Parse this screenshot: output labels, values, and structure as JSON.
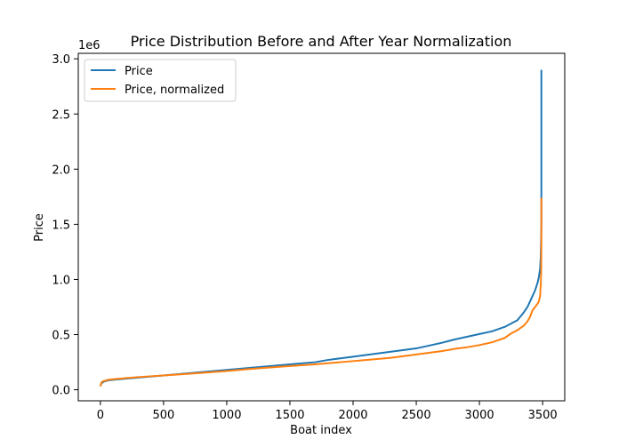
{
  "chart_data": {
    "type": "line",
    "title": "Price Distribution Before and After Year Normalization",
    "xlabel": "Boat index",
    "ylabel": "Price",
    "y_offset_label": "1e6",
    "xlim": [
      -175,
      3675
    ],
    "ylim": [
      -0.1,
      3.05
    ],
    "x_ticks": [
      {
        "value": 0,
        "label": "0"
      },
      {
        "value": 500,
        "label": "500"
      },
      {
        "value": 1000,
        "label": "1000"
      },
      {
        "value": 1500,
        "label": "1500"
      },
      {
        "value": 2000,
        "label": "2000"
      },
      {
        "value": 2500,
        "label": "2500"
      },
      {
        "value": 3000,
        "label": "3000"
      },
      {
        "value": 3500,
        "label": "3500"
      }
    ],
    "y_ticks": [
      {
        "value": 0.0,
        "label": "0.0"
      },
      {
        "value": 0.5,
        "label": "0.5"
      },
      {
        "value": 1.0,
        "label": "1.0"
      },
      {
        "value": 1.5,
        "label": "1.5"
      },
      {
        "value": 2.0,
        "label": "2.0"
      },
      {
        "value": 2.5,
        "label": "2.5"
      },
      {
        "value": 3.0,
        "label": "3.0"
      }
    ],
    "grid": false,
    "legend_position": "top-left",
    "series": [
      {
        "name": "Price",
        "color": "#1f77b4",
        "x": [
          0,
          10,
          30,
          60,
          100,
          200,
          300,
          500,
          700,
          1000,
          1200,
          1500,
          1700,
          1800,
          1900,
          2000,
          2100,
          2200,
          2300,
          2400,
          2500,
          2600,
          2700,
          2800,
          2900,
          3000,
          3100,
          3200,
          3250,
          3300,
          3350,
          3380,
          3400,
          3420,
          3440,
          3460,
          3470,
          3480,
          3485,
          3488,
          3490,
          3490,
          3490
        ],
        "y": [
          0.04,
          0.06,
          0.075,
          0.085,
          0.09,
          0.1,
          0.11,
          0.13,
          0.15,
          0.18,
          0.2,
          0.23,
          0.25,
          0.27,
          0.285,
          0.3,
          0.315,
          0.33,
          0.345,
          0.36,
          0.375,
          0.4,
          0.425,
          0.455,
          0.48,
          0.505,
          0.53,
          0.57,
          0.6,
          0.63,
          0.7,
          0.75,
          0.8,
          0.85,
          0.9,
          0.97,
          1.02,
          1.1,
          1.2,
          1.35,
          1.5,
          2.2,
          2.9
        ]
      },
      {
        "name": "Price, normalized",
        "color": "#ff7f0e",
        "x": [
          0,
          10,
          30,
          60,
          100,
          200,
          300,
          500,
          700,
          1000,
          1200,
          1500,
          1700,
          1800,
          1900,
          2000,
          2100,
          2200,
          2300,
          2400,
          2500,
          2600,
          2700,
          2800,
          2900,
          3000,
          3100,
          3200,
          3250,
          3300,
          3350,
          3380,
          3400,
          3420,
          3440,
          3460,
          3470,
          3480,
          3485,
          3488,
          3490,
          3490
        ],
        "y": [
          0.03,
          0.07,
          0.08,
          0.09,
          0.095,
          0.105,
          0.115,
          0.13,
          0.145,
          0.17,
          0.19,
          0.215,
          0.23,
          0.24,
          0.25,
          0.26,
          0.27,
          0.28,
          0.29,
          0.305,
          0.32,
          0.335,
          0.35,
          0.37,
          0.385,
          0.405,
          0.43,
          0.47,
          0.51,
          0.54,
          0.58,
          0.62,
          0.66,
          0.72,
          0.75,
          0.78,
          0.8,
          0.85,
          0.95,
          1.05,
          1.3,
          1.74
        ]
      }
    ]
  }
}
